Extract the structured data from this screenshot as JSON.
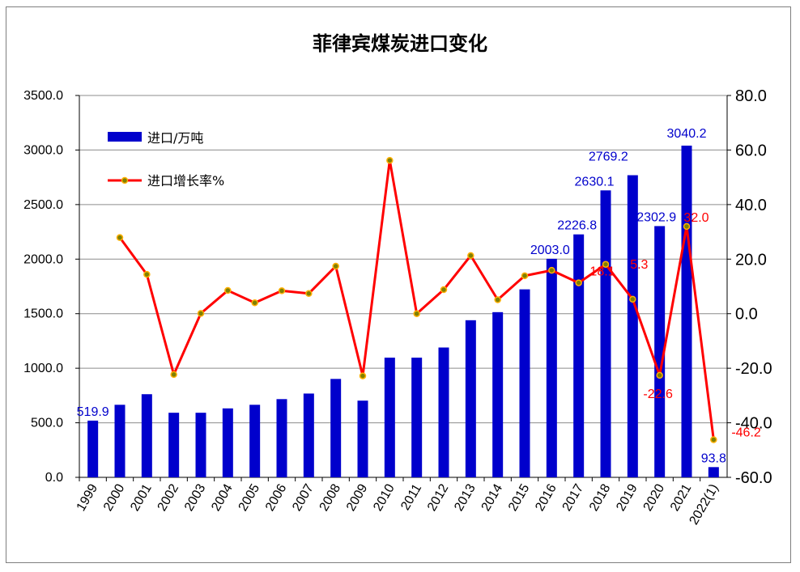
{
  "chart_data": {
    "type": "bar",
    "title": "菲律宾煤炭进口变化",
    "categories": [
      "1999",
      "2000",
      "2001",
      "2002",
      "2003",
      "2004",
      "2005",
      "2006",
      "2007",
      "2008",
      "2009",
      "2010",
      "2011",
      "2012",
      "2013",
      "2014",
      "2015",
      "2016",
      "2017",
      "2018",
      "2019",
      "2020",
      "2021",
      "2022(1)"
    ],
    "series": [
      {
        "name": "进口/万吨",
        "type": "bar",
        "axis": "left",
        "color": "#0000cc",
        "values": [
          519.9,
          665,
          762,
          592,
          592,
          632,
          665,
          717,
          768,
          902,
          703,
          1097,
          1097,
          1190,
          1440,
          1514,
          1723,
          2003.0,
          2226.8,
          2630.1,
          2769.2,
          2302.9,
          3040.2,
          93.8
        ]
      },
      {
        "name": "进口增长率%",
        "type": "line",
        "axis": "right",
        "color": "#ff0000",
        "values": [
          null,
          27.9,
          14.4,
          -22.3,
          0.1,
          8.5,
          4.0,
          8.4,
          7.4,
          17.4,
          -22.8,
          56.2,
          0.0,
          8.8,
          21.3,
          5.1,
          13.9,
          15.9,
          11.3,
          18.1,
          5.3,
          -22.6,
          32.0,
          -46.2
        ]
      }
    ],
    "data_labels": {
      "bars": [
        {
          "index": 0,
          "text": "519.9"
        },
        {
          "index": 17,
          "text": "2003.0"
        },
        {
          "index": 18,
          "text": "2226.8"
        },
        {
          "index": 19,
          "text": "2630.1"
        },
        {
          "index": 20,
          "text": "2769.2"
        },
        {
          "index": 21,
          "text": "2302.9"
        },
        {
          "index": 22,
          "text": "3040.2"
        },
        {
          "index": 23,
          "text": "93.8"
        }
      ],
      "line": [
        {
          "index": 19,
          "text": "18.1"
        },
        {
          "index": 20,
          "text": "5.3"
        },
        {
          "index": 21,
          "text": "-22.6"
        },
        {
          "index": 22,
          "text": "32.0"
        },
        {
          "index": 23,
          "text": "-46.2"
        }
      ]
    },
    "y_left": {
      "min": 0,
      "max": 3500,
      "step": 500,
      "tick_labels": [
        "0.0",
        "500.0",
        "1000.0",
        "1500.0",
        "2000.0",
        "2500.0",
        "3000.0",
        "3500.0"
      ]
    },
    "y_right": {
      "min": -60,
      "max": 80,
      "step": 20,
      "tick_labels": [
        "-60.0",
        "-40.0",
        "-20.0",
        "0.0",
        "20.0",
        "40.0",
        "60.0",
        "80.0"
      ]
    },
    "xlabel": "",
    "ylabel": "",
    "grid": "horizontal",
    "legend_position": "top-left"
  }
}
